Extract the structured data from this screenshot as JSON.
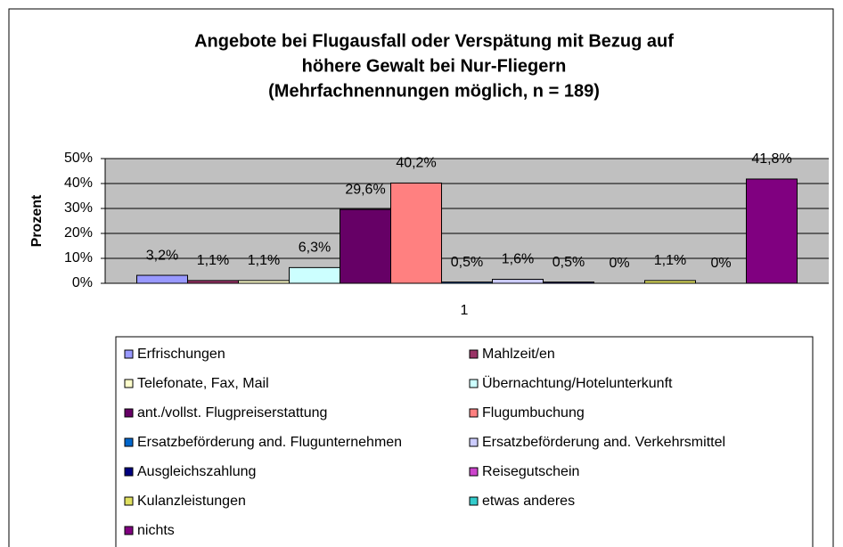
{
  "chart_data": {
    "type": "bar",
    "title": [
      "Angebote bei Flugausfall oder Verspätung mit Bezug auf",
      "höhere Gewalt bei Nur-Fliegern",
      "(Mehrfachnennungen möglich, n = 189)"
    ],
    "ylabel": "Prozent",
    "categories": [
      "1"
    ],
    "ylim": [
      0,
      50
    ],
    "yticks": [
      {
        "value": 0,
        "label": "0%"
      },
      {
        "value": 10,
        "label": "10%"
      },
      {
        "value": 20,
        "label": "20%"
      },
      {
        "value": 30,
        "label": "30%"
      },
      {
        "value": 40,
        "label": "40%"
      },
      {
        "value": 50,
        "label": "50%"
      }
    ],
    "grid": true,
    "series": [
      {
        "name": "Erfrischungen",
        "color": "#9999ff",
        "values": [
          3.2
        ],
        "value_labels": [
          "3,2%"
        ]
      },
      {
        "name": "Mahlzeit/en",
        "color": "#993366",
        "values": [
          1.1
        ],
        "value_labels": [
          "1,1%"
        ]
      },
      {
        "name": "Telefonate, Fax, Mail",
        "color": "#ffffcc",
        "values": [
          1.1
        ],
        "value_labels": [
          "1,1%"
        ]
      },
      {
        "name": "Übernachtung/Hotelunterkunft",
        "color": "#ccffff",
        "values": [
          6.3
        ],
        "value_labels": [
          "6,3%"
        ]
      },
      {
        "name": "ant./vollst. Flugpreiserstattung",
        "color": "#660066",
        "values": [
          29.6
        ],
        "value_labels": [
          "29,6%"
        ]
      },
      {
        "name": "Flugumbuchung",
        "color": "#ff8080",
        "values": [
          40.2
        ],
        "value_labels": [
          "40,2%"
        ]
      },
      {
        "name": "Ersatzbeförderung and. Flugunternehmen",
        "color": "#0066cc",
        "values": [
          0.5
        ],
        "value_labels": [
          "0,5%"
        ]
      },
      {
        "name": "Ersatzbeförderung and. Verkehrsmittel",
        "color": "#ccccff",
        "values": [
          1.6
        ],
        "value_labels": [
          "1,6%"
        ]
      },
      {
        "name": "Ausgleichszahlung",
        "color": "#000080",
        "values": [
          0.5
        ],
        "value_labels": [
          "0,5%"
        ]
      },
      {
        "name": "Reisegutschein",
        "color": "#cc44cc",
        "values": [
          0
        ],
        "value_labels": [
          "0%"
        ]
      },
      {
        "name": "Kulanzleistungen",
        "color": "#e0e060",
        "values": [
          1.1
        ],
        "value_labels": [
          "1,1%"
        ]
      },
      {
        "name": "etwas anderes",
        "color": "#33cccc",
        "values": [
          0
        ],
        "value_labels": [
          "0%"
        ]
      },
      {
        "name": "nichts",
        "color": "#800080",
        "values": [
          41.8
        ],
        "value_labels": [
          "41,8%"
        ]
      }
    ]
  }
}
